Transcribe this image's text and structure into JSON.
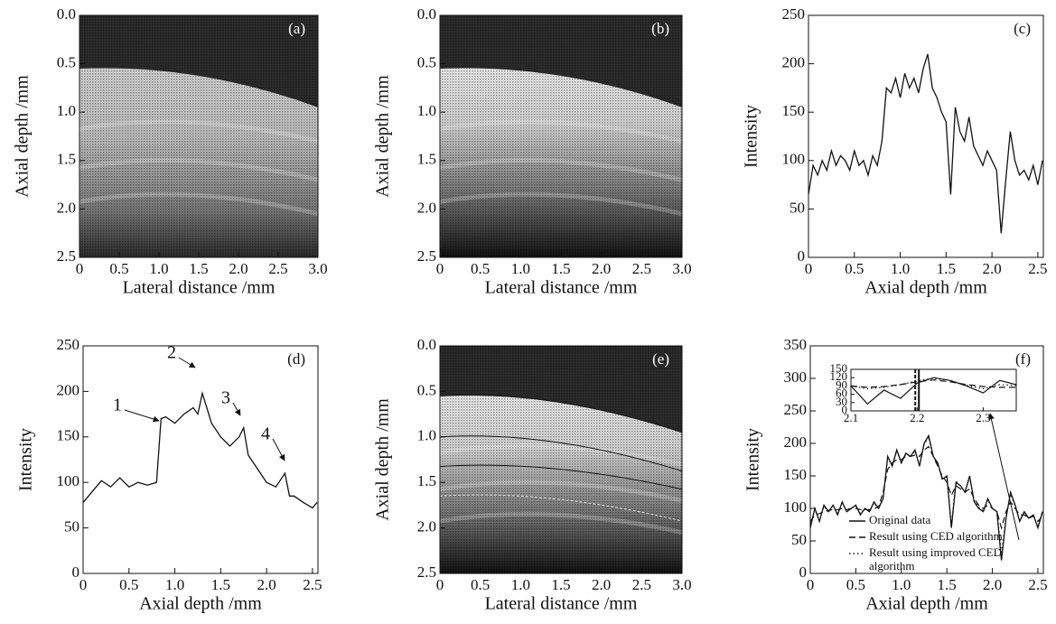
{
  "chart_data": [
    {
      "type": "image",
      "panel_label": "(a)",
      "xlabel": "Lateral distance /mm",
      "ylabel": "Axial depth /mm",
      "xlim": [
        0,
        3
      ],
      "ylim": [
        0,
        2.5
      ],
      "y_reversed": true,
      "xticks": [
        0,
        0.5,
        {
          "value": 1,
          "label": "1.0"
        },
        1.5,
        {
          "value": 2,
          "label": "2.0"
        },
        2.5,
        {
          "value": 3,
          "label": "3.0"
        }
      ],
      "yticks": [
        {
          "value": 0,
          "label": "0.0"
        },
        0.5,
        {
          "value": 1,
          "label": "1.0"
        },
        1.5,
        {
          "value": 2,
          "label": "2.0"
        },
        2.5
      ]
    },
    {
      "type": "image",
      "panel_label": "(b)",
      "xlabel": "Lateral distance /mm",
      "ylabel": "Axial depth /mm",
      "xlim": [
        0,
        3
      ],
      "ylim": [
        0,
        2.5
      ],
      "y_reversed": true,
      "xticks": [
        0,
        0.5,
        {
          "value": 1,
          "label": "1.0"
        },
        1.5,
        {
          "value": 2,
          "label": "2.0"
        },
        2.5,
        {
          "value": 3,
          "label": "3.0"
        }
      ],
      "yticks": [
        {
          "value": 0,
          "label": "0.0"
        },
        0.5,
        {
          "value": 1,
          "label": "1.0"
        },
        1.5,
        {
          "value": 2,
          "label": "2.0"
        },
        2.5
      ]
    },
    {
      "type": "line",
      "panel_label": "(c)",
      "xlabel": "Axial depth /mm",
      "ylabel": "Intensity",
      "xlim": [
        0,
        2.56
      ],
      "ylim": [
        0,
        250
      ],
      "xticks": [
        0,
        0.5,
        {
          "value": 1,
          "label": "1.0"
        },
        1.5,
        {
          "value": 2,
          "label": "2.0"
        },
        2.5
      ],
      "yticks": [
        0,
        50,
        100,
        150,
        200,
        250
      ],
      "color": "#111111",
      "x": [
        0,
        0.05,
        0.1,
        0.15,
        0.2,
        0.25,
        0.3,
        0.35,
        0.4,
        0.45,
        0.5,
        0.55,
        0.6,
        0.65,
        0.7,
        0.75,
        0.8,
        0.85,
        0.9,
        0.95,
        1.0,
        1.05,
        1.1,
        1.15,
        1.2,
        1.25,
        1.3,
        1.35,
        1.4,
        1.45,
        1.5,
        1.55,
        1.6,
        1.65,
        1.7,
        1.75,
        1.8,
        1.85,
        1.9,
        1.95,
        2.0,
        2.05,
        2.1,
        2.15,
        2.2,
        2.25,
        2.3,
        2.35,
        2.4,
        2.45,
        2.5,
        2.55
      ],
      "values": [
        65,
        95,
        85,
        100,
        90,
        110,
        95,
        105,
        100,
        90,
        110,
        95,
        100,
        85,
        105,
        95,
        120,
        175,
        170,
        185,
        165,
        190,
        175,
        185,
        170,
        195,
        210,
        175,
        165,
        150,
        140,
        65,
        155,
        130,
        120,
        145,
        115,
        105,
        95,
        110,
        100,
        90,
        25,
        80,
        130,
        100,
        85,
        90,
        80,
        95,
        75,
        100
      ]
    },
    {
      "type": "line",
      "panel_label": "(d)",
      "xlabel": "Axial depth /mm",
      "ylabel": "Intensity",
      "xlim": [
        0,
        2.56
      ],
      "ylim": [
        0,
        250
      ],
      "xticks": [
        0,
        0.5,
        {
          "value": 1,
          "label": "1.0"
        },
        1.5,
        {
          "value": 2,
          "label": "2.0"
        },
        2.5
      ],
      "yticks": [
        0,
        50,
        100,
        150,
        200,
        250
      ],
      "color": "#111111",
      "x": [
        0,
        0.1,
        0.2,
        0.3,
        0.4,
        0.5,
        0.6,
        0.7,
        0.8,
        0.85,
        0.9,
        1.0,
        1.1,
        1.2,
        1.25,
        1.3,
        1.4,
        1.5,
        1.6,
        1.7,
        1.75,
        1.8,
        1.9,
        2.0,
        2.1,
        2.2,
        2.25,
        2.3,
        2.4,
        2.5,
        2.55
      ],
      "values": [
        78,
        90,
        102,
        95,
        105,
        95,
        100,
        97,
        100,
        170,
        172,
        165,
        175,
        182,
        175,
        198,
        165,
        150,
        140,
        150,
        160,
        130,
        115,
        100,
        95,
        110,
        85,
        85,
        78,
        72,
        78
      ],
      "annotations": [
        "1",
        "2",
        "3",
        "4"
      ]
    },
    {
      "type": "image",
      "panel_label": "(e)",
      "xlabel": "Lateral distance /mm",
      "ylabel": "Axial depth /mm",
      "xlim": [
        0,
        3
      ],
      "ylim": [
        0,
        2.5
      ],
      "y_reversed": true,
      "xticks": [
        0,
        0.5,
        {
          "value": 1,
          "label": "1.0"
        },
        1.5,
        {
          "value": 2,
          "label": "2.0"
        },
        2.5,
        {
          "value": 3,
          "label": "3.0"
        }
      ],
      "yticks": [
        {
          "value": 0,
          "label": "0.0"
        },
        0.5,
        {
          "value": 1,
          "label": "1.0"
        },
        1.5,
        {
          "value": 2,
          "label": "2.0"
        },
        2.5
      ]
    },
    {
      "type": "line",
      "panel_label": "(f)",
      "xlabel": "Axial depth /mm",
      "ylabel": "Intensity",
      "xlim": [
        0,
        2.56
      ],
      "ylim": [
        0,
        350
      ],
      "xticks": [
        0,
        0.5,
        {
          "value": 1,
          "label": "1.0"
        },
        1.5,
        {
          "value": 2,
          "label": "2.0"
        },
        2.5
      ],
      "yticks": [
        0,
        50,
        100,
        150,
        200,
        250,
        300,
        350
      ],
      "x": [
        0,
        0.05,
        0.1,
        0.15,
        0.2,
        0.25,
        0.3,
        0.35,
        0.4,
        0.45,
        0.5,
        0.55,
        0.6,
        0.65,
        0.7,
        0.75,
        0.8,
        0.85,
        0.9,
        0.95,
        1.0,
        1.05,
        1.1,
        1.15,
        1.2,
        1.25,
        1.3,
        1.35,
        1.4,
        1.45,
        1.5,
        1.55,
        1.6,
        1.65,
        1.7,
        1.75,
        1.8,
        1.85,
        1.9,
        1.95,
        2.0,
        2.05,
        2.1,
        2.15,
        2.2,
        2.25,
        2.3,
        2.35,
        2.4,
        2.45,
        2.5,
        2.55
      ],
      "series": [
        {
          "name": "Original data",
          "color": "#111111",
          "dash": "solid",
          "values": [
            70,
            100,
            80,
            105,
            95,
            105,
            90,
            110,
            95,
            100,
            105,
            90,
            100,
            95,
            110,
            100,
            115,
            180,
            165,
            190,
            170,
            185,
            180,
            190,
            165,
            200,
            212,
            180,
            170,
            145,
            150,
            70,
            140,
            135,
            125,
            150,
            110,
            100,
            95,
            115,
            100,
            95,
            20,
            85,
            125,
            105,
            80,
            95,
            85,
            90,
            70,
            95
          ]
        },
        {
          "name": "Result using CED algorithm",
          "color": "#111111",
          "dash": "dashed",
          "values": [
            80,
            90,
            92,
            95,
            97,
            98,
            98,
            100,
            98,
            100,
            100,
            98,
            98,
            98,
            100,
            102,
            125,
            160,
            170,
            175,
            175,
            180,
            180,
            182,
            180,
            190,
            195,
            180,
            165,
            150,
            140,
            120,
            135,
            130,
            125,
            130,
            115,
            105,
            100,
            105,
            100,
            95,
            70,
            95,
            110,
            100,
            90,
            90,
            85,
            88,
            80,
            88
          ]
        },
        {
          "name": "Result using improved CED algorithm",
          "color": "#111111",
          "dash": "dotted",
          "values": [
            72,
            98,
            82,
            103,
            95,
            104,
            92,
            108,
            96,
            100,
            104,
            92,
            100,
            96,
            108,
            100,
            117,
            178,
            166,
            188,
            170,
            184,
            180,
            188,
            167,
            198,
            210,
            180,
            168,
            147,
            148,
            75,
            142,
            134,
            125,
            148,
            112,
            102,
            96,
            113,
            100,
            95,
            30,
            86,
            122,
            104,
            82,
            94,
            85,
            90,
            72,
            94
          ]
        }
      ],
      "inset": {
        "xlim": [
          2.1,
          2.35
        ],
        "ylim": [
          0,
          150
        ],
        "xticks": [
          2.1,
          2.2,
          2.3
        ],
        "yticks": [
          0,
          30,
          60,
          90,
          120,
          150
        ],
        "x": [
          2.1,
          2.125,
          2.15,
          2.175,
          2.2,
          2.225,
          2.25,
          2.275,
          2.3,
          2.325,
          2.35
        ],
        "series": [
          {
            "color": "#111111",
            "dash": "solid",
            "values": [
              90,
              25,
              75,
              45,
              100,
              120,
              110,
              90,
              65,
              110,
              95
            ]
          },
          {
            "color": "#111111",
            "dash": "dashed",
            "values": [
              90,
              85,
              88,
              95,
              105,
              112,
              105,
              95,
              88,
              85,
              85
            ]
          },
          {
            "color": "#111111",
            "dash": "dotted",
            "values": [
              90,
              80,
              85,
              95,
              108,
              118,
              110,
              92,
              80,
              95,
              92
            ]
          }
        ]
      }
    }
  ]
}
